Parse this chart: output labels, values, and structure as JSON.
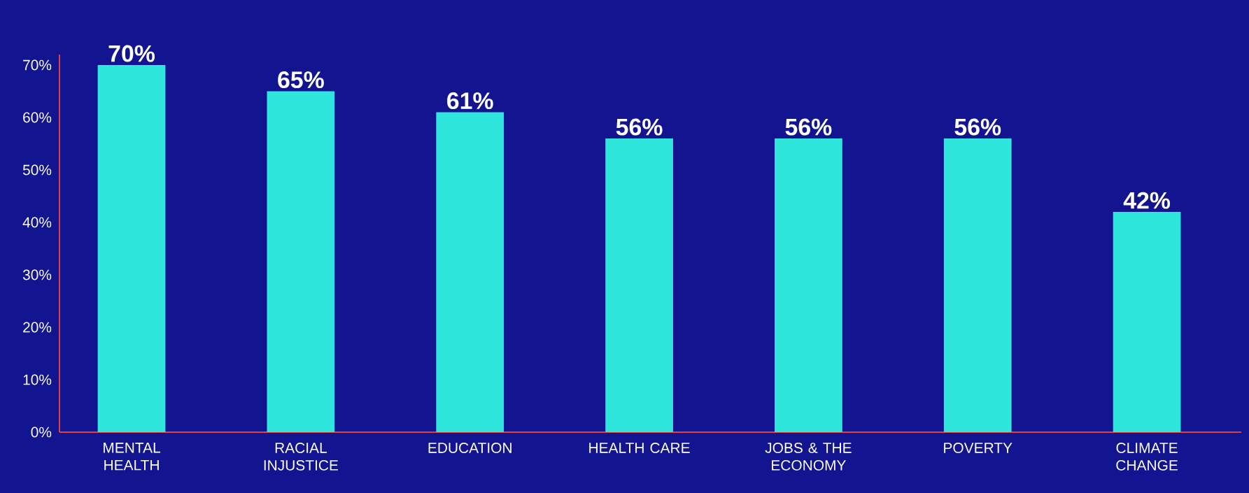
{
  "chart_data": {
    "type": "bar",
    "categories": [
      "MENTAL HEALTH",
      "RACIAL INJUSTICE",
      "EDUCATION",
      "HEALTH CARE",
      "JOBS & THE ECONOMY",
      "POVERTY",
      "CLIMATE CHANGE"
    ],
    "values": [
      70,
      65,
      61,
      56,
      56,
      56,
      42
    ],
    "value_labels": [
      "70%",
      "65%",
      "61%",
      "56%",
      "56%",
      "56%",
      "42%"
    ],
    "color": "#2ee6dc",
    "ylim": [
      0,
      72
    ],
    "yticks": [
      {
        "value": 0,
        "label": "0%"
      },
      {
        "value": 10,
        "label": "10%"
      },
      {
        "value": 20,
        "label": "20%"
      },
      {
        "value": 30,
        "label": "30%"
      },
      {
        "value": 40,
        "label": "40%"
      },
      {
        "value": 50,
        "label": "50%"
      },
      {
        "value": 60,
        "label": "60%"
      },
      {
        "value": 70,
        "label": "70%"
      }
    ],
    "grid": false
  }
}
